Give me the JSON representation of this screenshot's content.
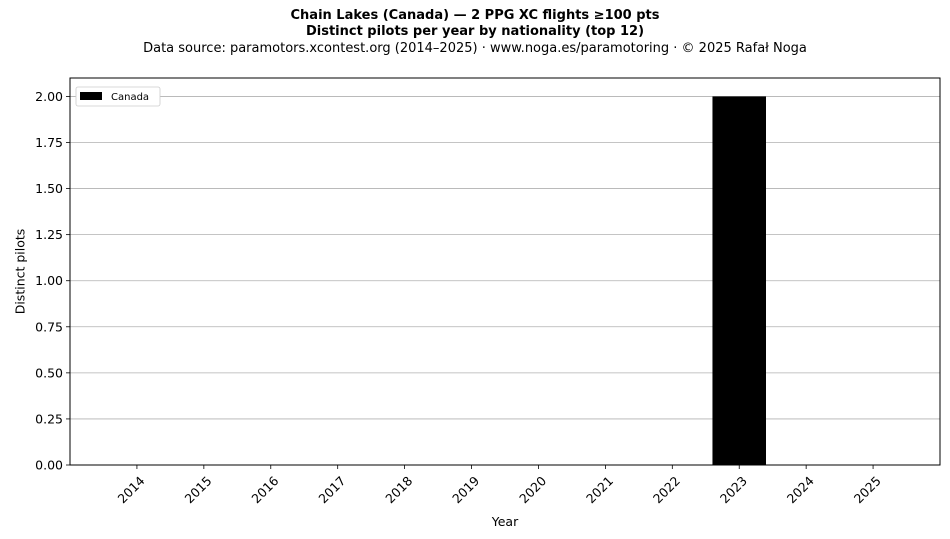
{
  "header": {
    "title": "Chain Lakes (Canada)  —  2 PPG XC flights ≥100 pts",
    "subtitle_bold": "Distinct pilots per year by nationality (top 12)",
    "source": "Data source: paramotors.xcontest.org (2014–2025)  ·  www.noga.es/paramotoring  ·  © 2025 Rafał Noga"
  },
  "chart_data": {
    "type": "bar",
    "stacked": true,
    "categories": [
      "2014",
      "2015",
      "2016",
      "2017",
      "2018",
      "2019",
      "2020",
      "2021",
      "2022",
      "2023",
      "2024",
      "2025"
    ],
    "series": [
      {
        "name": "Canada",
        "color": "#000000",
        "values": [
          0,
          0,
          0,
          0,
          0,
          0,
          0,
          0,
          0,
          2,
          0,
          0
        ]
      }
    ],
    "xlabel": "Year",
    "ylabel": "Distinct pilots",
    "ylim": [
      0,
      2.1
    ],
    "yticks": [
      "0.00",
      "0.25",
      "0.50",
      "0.75",
      "1.00",
      "1.25",
      "1.50",
      "1.75",
      "2.00"
    ],
    "grid": "y-major",
    "legend_position": "top-left"
  }
}
